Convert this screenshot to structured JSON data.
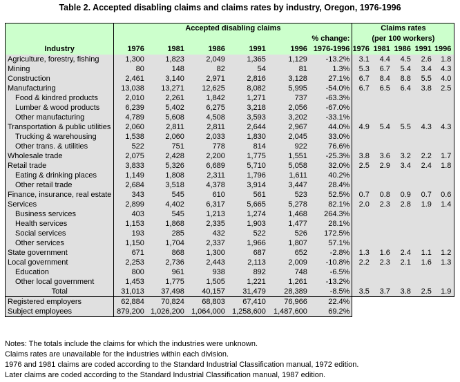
{
  "title": "Table 2. Accepted disabling claims and claims rates by industry, Oregon, 1976-1996",
  "header": {
    "group_claims": "Accepted disabling claims",
    "group_rates_1": "Claims rates",
    "group_rates_2": "(per 100 workers)",
    "pct_change_1": "% change:",
    "industry": "Industry",
    "years": [
      "1976",
      "1981",
      "1986",
      "1991",
      "1996"
    ],
    "pct_change_2": "1976-1996",
    "rate_years": [
      "1976",
      "1981",
      "1986",
      "1991",
      "1996"
    ]
  },
  "rows": [
    {
      "industry": "Agriculture, forestry, fishing",
      "sub": false,
      "claims": [
        "1,300",
        "1,823",
        "2,049",
        "1,365",
        "1,129"
      ],
      "pct": "-13.2%",
      "rates": [
        "3.1",
        "4.4",
        "4.5",
        "2.6",
        "1.8"
      ]
    },
    {
      "industry": "Mining",
      "sub": false,
      "claims": [
        "80",
        "148",
        "82",
        "54",
        "81"
      ],
      "pct": "1.3%",
      "rates": [
        "5.3",
        "6.7",
        "5.4",
        "3.4",
        "4.3"
      ]
    },
    {
      "industry": "Construction",
      "sub": false,
      "claims": [
        "2,461",
        "3,140",
        "2,971",
        "2,816",
        "3,128"
      ],
      "pct": "27.1%",
      "rates": [
        "6.7",
        "8.4",
        "8.8",
        "5.5",
        "4.0"
      ]
    },
    {
      "industry": "Manufacturing",
      "sub": false,
      "claims": [
        "13,038",
        "13,271",
        "12,625",
        "8,082",
        "5,995"
      ],
      "pct": "-54.0%",
      "rates": [
        "6.7",
        "6.5",
        "6.4",
        "3.8",
        "2.5"
      ]
    },
    {
      "industry": "Food & kindred products",
      "sub": true,
      "claims": [
        "2,010",
        "2,261",
        "1,842",
        "1,271",
        "737"
      ],
      "pct": "-63.3%",
      "rates": [
        "",
        "",
        "",
        "",
        ""
      ]
    },
    {
      "industry": "Lumber & wood products",
      "sub": true,
      "claims": [
        "6,239",
        "5,402",
        "6,275",
        "3,218",
        "2,056"
      ],
      "pct": "-67.0%",
      "rates": [
        "",
        "",
        "",
        "",
        ""
      ]
    },
    {
      "industry": "Other manufacturing",
      "sub": true,
      "claims": [
        "4,789",
        "5,608",
        "4,508",
        "3,593",
        "3,202"
      ],
      "pct": "-33.1%",
      "rates": [
        "",
        "",
        "",
        "",
        ""
      ]
    },
    {
      "industry": "Transportation & public utilities",
      "sub": false,
      "claims": [
        "2,060",
        "2,811",
        "2,811",
        "2,644",
        "2,967"
      ],
      "pct": "44.0%",
      "rates": [
        "4.9",
        "5.4",
        "5.5",
        "4.3",
        "4.3"
      ]
    },
    {
      "industry": "Trucking & warehousing",
      "sub": true,
      "claims": [
        "1,538",
        "2,060",
        "2,033",
        "1,830",
        "2,045"
      ],
      "pct": "33.0%",
      "rates": [
        "",
        "",
        "",
        "",
        ""
      ]
    },
    {
      "industry": "Other trans. & utilities",
      "sub": true,
      "claims": [
        "522",
        "751",
        "778",
        "814",
        "922"
      ],
      "pct": "76.6%",
      "rates": [
        "",
        "",
        "",
        "",
        ""
      ]
    },
    {
      "industry": "Wholesale trade",
      "sub": false,
      "claims": [
        "2,075",
        "2,428",
        "2,200",
        "1,775",
        "1,551"
      ],
      "pct": "-25.3%",
      "rates": [
        "3.8",
        "3.6",
        "3.2",
        "2.2",
        "1.7"
      ]
    },
    {
      "industry": "Retail trade",
      "sub": false,
      "claims": [
        "3,833",
        "5,326",
        "6,689",
        "5,710",
        "5,058"
      ],
      "pct": "32.0%",
      "rates": [
        "2.5",
        "2.9",
        "3.4",
        "2.4",
        "1.8"
      ]
    },
    {
      "industry": "Eating & drinking places",
      "sub": true,
      "claims": [
        "1,149",
        "1,808",
        "2,311",
        "1,796",
        "1,611"
      ],
      "pct": "40.2%",
      "rates": [
        "",
        "",
        "",
        "",
        ""
      ]
    },
    {
      "industry": "Other retail trade",
      "sub": true,
      "claims": [
        "2,684",
        "3,518",
        "4,378",
        "3,914",
        "3,447"
      ],
      "pct": "28.4%",
      "rates": [
        "",
        "",
        "",
        "",
        ""
      ]
    },
    {
      "industry": "Finance, insurance, real estate",
      "sub": false,
      "claims": [
        "343",
        "545",
        "610",
        "561",
        "523"
      ],
      "pct": "52.5%",
      "rates": [
        "0.7",
        "0.8",
        "0.9",
        "0.7",
        "0.6"
      ]
    },
    {
      "industry": "Services",
      "sub": false,
      "claims": [
        "2,899",
        "4,402",
        "6,317",
        "5,665",
        "5,278"
      ],
      "pct": "82.1%",
      "rates": [
        "2.0",
        "2.3",
        "2.8",
        "1.9",
        "1.4"
      ]
    },
    {
      "industry": "Business services",
      "sub": true,
      "claims": [
        "403",
        "545",
        "1,213",
        "1,274",
        "1,468"
      ],
      "pct": "264.3%",
      "rates": [
        "",
        "",
        "",
        "",
        ""
      ]
    },
    {
      "industry": "Health services",
      "sub": true,
      "claims": [
        "1,153",
        "1,868",
        "2,335",
        "1,903",
        "1,477"
      ],
      "pct": "28.1%",
      "rates": [
        "",
        "",
        "",
        "",
        ""
      ]
    },
    {
      "industry": "Social services",
      "sub": true,
      "claims": [
        "193",
        "285",
        "432",
        "522",
        "526"
      ],
      "pct": "172.5%",
      "rates": [
        "",
        "",
        "",
        "",
        ""
      ]
    },
    {
      "industry": "Other services",
      "sub": true,
      "claims": [
        "1,150",
        "1,704",
        "2,337",
        "1,966",
        "1,807"
      ],
      "pct": "57.1%",
      "rates": [
        "",
        "",
        "",
        "",
        ""
      ]
    },
    {
      "industry": "State government",
      "sub": false,
      "claims": [
        "671",
        "868",
        "1,300",
        "687",
        "652"
      ],
      "pct": "-2.8%",
      "rates": [
        "1.3",
        "1.6",
        "2.4",
        "1.1",
        "1.2"
      ]
    },
    {
      "industry": "Local government",
      "sub": false,
      "claims": [
        "2,253",
        "2,736",
        "2,443",
        "2,113",
        "2,009"
      ],
      "pct": "-10.8%",
      "rates": [
        "2.2",
        "2.3",
        "2.1",
        "1.6",
        "1.3"
      ]
    },
    {
      "industry": "Education",
      "sub": true,
      "claims": [
        "800",
        "961",
        "938",
        "892",
        "748"
      ],
      "pct": "-6.5%",
      "rates": [
        "",
        "",
        "",
        "",
        ""
      ]
    },
    {
      "industry": "Other local government",
      "sub": true,
      "claims": [
        "1,453",
        "1,775",
        "1,505",
        "1,221",
        "1,261"
      ],
      "pct": "-13.2%",
      "rates": [
        "",
        "",
        "",
        "",
        ""
      ]
    },
    {
      "industry": "Total",
      "sub": "total",
      "claims": [
        "31,013",
        "37,498",
        "40,157",
        "31,479",
        "28,389"
      ],
      "pct": "-8.5%",
      "rates": [
        "3.5",
        "3.7",
        "3.8",
        "2.5",
        "1.9"
      ]
    }
  ],
  "employment_rows": [
    {
      "industry": "Registered employers",
      "claims": [
        "62,884",
        "70,824",
        "68,803",
        "67,410",
        "76,966"
      ],
      "pct": "22.4%"
    },
    {
      "industry": "Subject employees",
      "claims": [
        "879,200",
        "1,026,200",
        "1,064,000",
        "1,258,600",
        "1,487,600"
      ],
      "pct": "69.2%"
    }
  ],
  "notes": [
    "Notes:  The totals include the claims for which the industries were unknown.",
    "Claims rates are unavailable for the industries within each division.",
    "1976 and 1981 claims are coded according to the Standard Industrial Classification manual, 1972 edition.",
    "Later claims are coded according to the Standard Industrial Classification manual, 1987 edition."
  ]
}
